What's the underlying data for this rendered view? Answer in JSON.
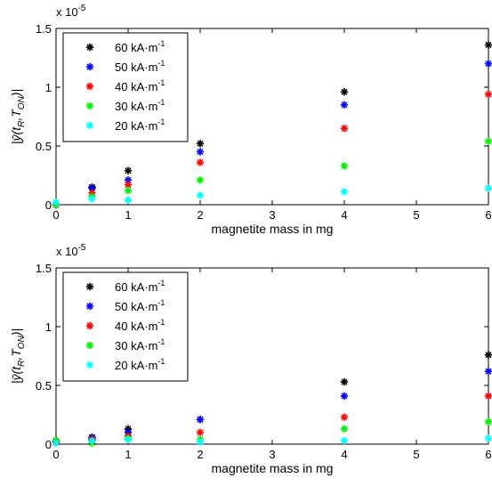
{
  "chart_data": [
    {
      "type": "scatter",
      "xlabel": "magnetite mass in mg",
      "ylabel": "|ȳ(t_R, T_ON)|",
      "ylabel_parts": {
        "main": "|ȳ(t",
        "sub1": "R",
        "mid": ",T",
        "sub2": "ON",
        "end": ")|"
      },
      "y_exponent": {
        "base": "x 10",
        "exp": "-5"
      },
      "xlim": [
        0,
        6
      ],
      "ylim": [
        0,
        1.5
      ],
      "xticks": [
        "0",
        "1",
        "2",
        "3",
        "4",
        "5",
        "6"
      ],
      "yticks": [
        "0",
        "0.5",
        "1",
        "1.5"
      ],
      "legend_placement": "top-left",
      "series": [
        {
          "name": "60 kA·m",
          "unit_exp": "-1",
          "color": "#000000",
          "x": [
            0,
            0.5,
            1,
            2,
            4,
            6
          ],
          "y": [
            0.0,
            0.15,
            0.29,
            0.52,
            0.96,
            1.36
          ]
        },
        {
          "name": "50 kA·m",
          "unit_exp": "-1",
          "color": "#0000ff",
          "x": [
            0,
            0.5,
            1,
            2,
            4,
            6
          ],
          "y": [
            0.0,
            0.14,
            0.21,
            0.45,
            0.85,
            1.2
          ]
        },
        {
          "name": "40 kA·m",
          "unit_exp": "-1",
          "color": "#ff0000",
          "x": [
            0,
            0.5,
            1,
            2,
            4,
            6
          ],
          "y": [
            0.0,
            0.1,
            0.17,
            0.36,
            0.65,
            0.94
          ]
        },
        {
          "name": "30 kA·m",
          "unit_exp": "-1",
          "color": "#00ee00",
          "x": [
            0,
            0.5,
            1,
            2,
            4,
            6
          ],
          "y": [
            0.0,
            0.07,
            0.12,
            0.21,
            0.33,
            0.54
          ]
        },
        {
          "name": "20 kA·m",
          "unit_exp": "-1",
          "color": "#00ffff",
          "x": [
            0,
            0.5,
            1,
            2,
            4,
            6
          ],
          "y": [
            0.02,
            0.05,
            0.04,
            0.08,
            0.11,
            0.14
          ]
        }
      ]
    },
    {
      "type": "scatter",
      "xlabel": "magnetite mass in mg",
      "ylabel": "|ȳ(t_R, T_ON)|",
      "ylabel_parts": {
        "main": "|ȳ(t",
        "sub1": "R",
        "mid": ",T",
        "sub2": "ON",
        "end": ")|"
      },
      "y_exponent": {
        "base": "x 10",
        "exp": "-5"
      },
      "xlim": [
        0,
        6
      ],
      "ylim": [
        0,
        1.5
      ],
      "xticks": [
        "0",
        "1",
        "2",
        "3",
        "4",
        "5",
        "6"
      ],
      "yticks": [
        "0",
        "0.5",
        "1",
        "1.5"
      ],
      "legend_placement": "top-left",
      "series": [
        {
          "name": "60 kA·m",
          "unit_exp": "-1",
          "color": "#000000",
          "x": [
            0,
            0.5,
            1,
            2,
            4,
            6
          ],
          "y": [
            0.03,
            0.06,
            0.13,
            0.21,
            0.53,
            0.76
          ]
        },
        {
          "name": "50 kA·m",
          "unit_exp": "-1",
          "color": "#0000ff",
          "x": [
            0,
            0.5,
            1,
            2,
            4,
            6
          ],
          "y": [
            0.02,
            0.05,
            0.1,
            0.21,
            0.41,
            0.62
          ]
        },
        {
          "name": "40 kA·m",
          "unit_exp": "-1",
          "color": "#ff0000",
          "x": [
            0,
            0.5,
            1,
            2,
            4,
            6
          ],
          "y": [
            0.02,
            0.04,
            0.07,
            0.1,
            0.23,
            0.41
          ]
        },
        {
          "name": "30 kA·m",
          "unit_exp": "-1",
          "color": "#00ee00",
          "x": [
            0,
            0.5,
            1,
            2,
            4,
            6
          ],
          "y": [
            0.03,
            0.01,
            0.05,
            0.04,
            0.13,
            0.19
          ]
        },
        {
          "name": "20 kA·m",
          "unit_exp": "-1",
          "color": "#00ffff",
          "x": [
            0,
            0.5,
            1,
            2,
            4,
            6
          ],
          "y": [
            0.01,
            0.03,
            0.04,
            0.02,
            0.03,
            0.05
          ]
        }
      ]
    }
  ]
}
